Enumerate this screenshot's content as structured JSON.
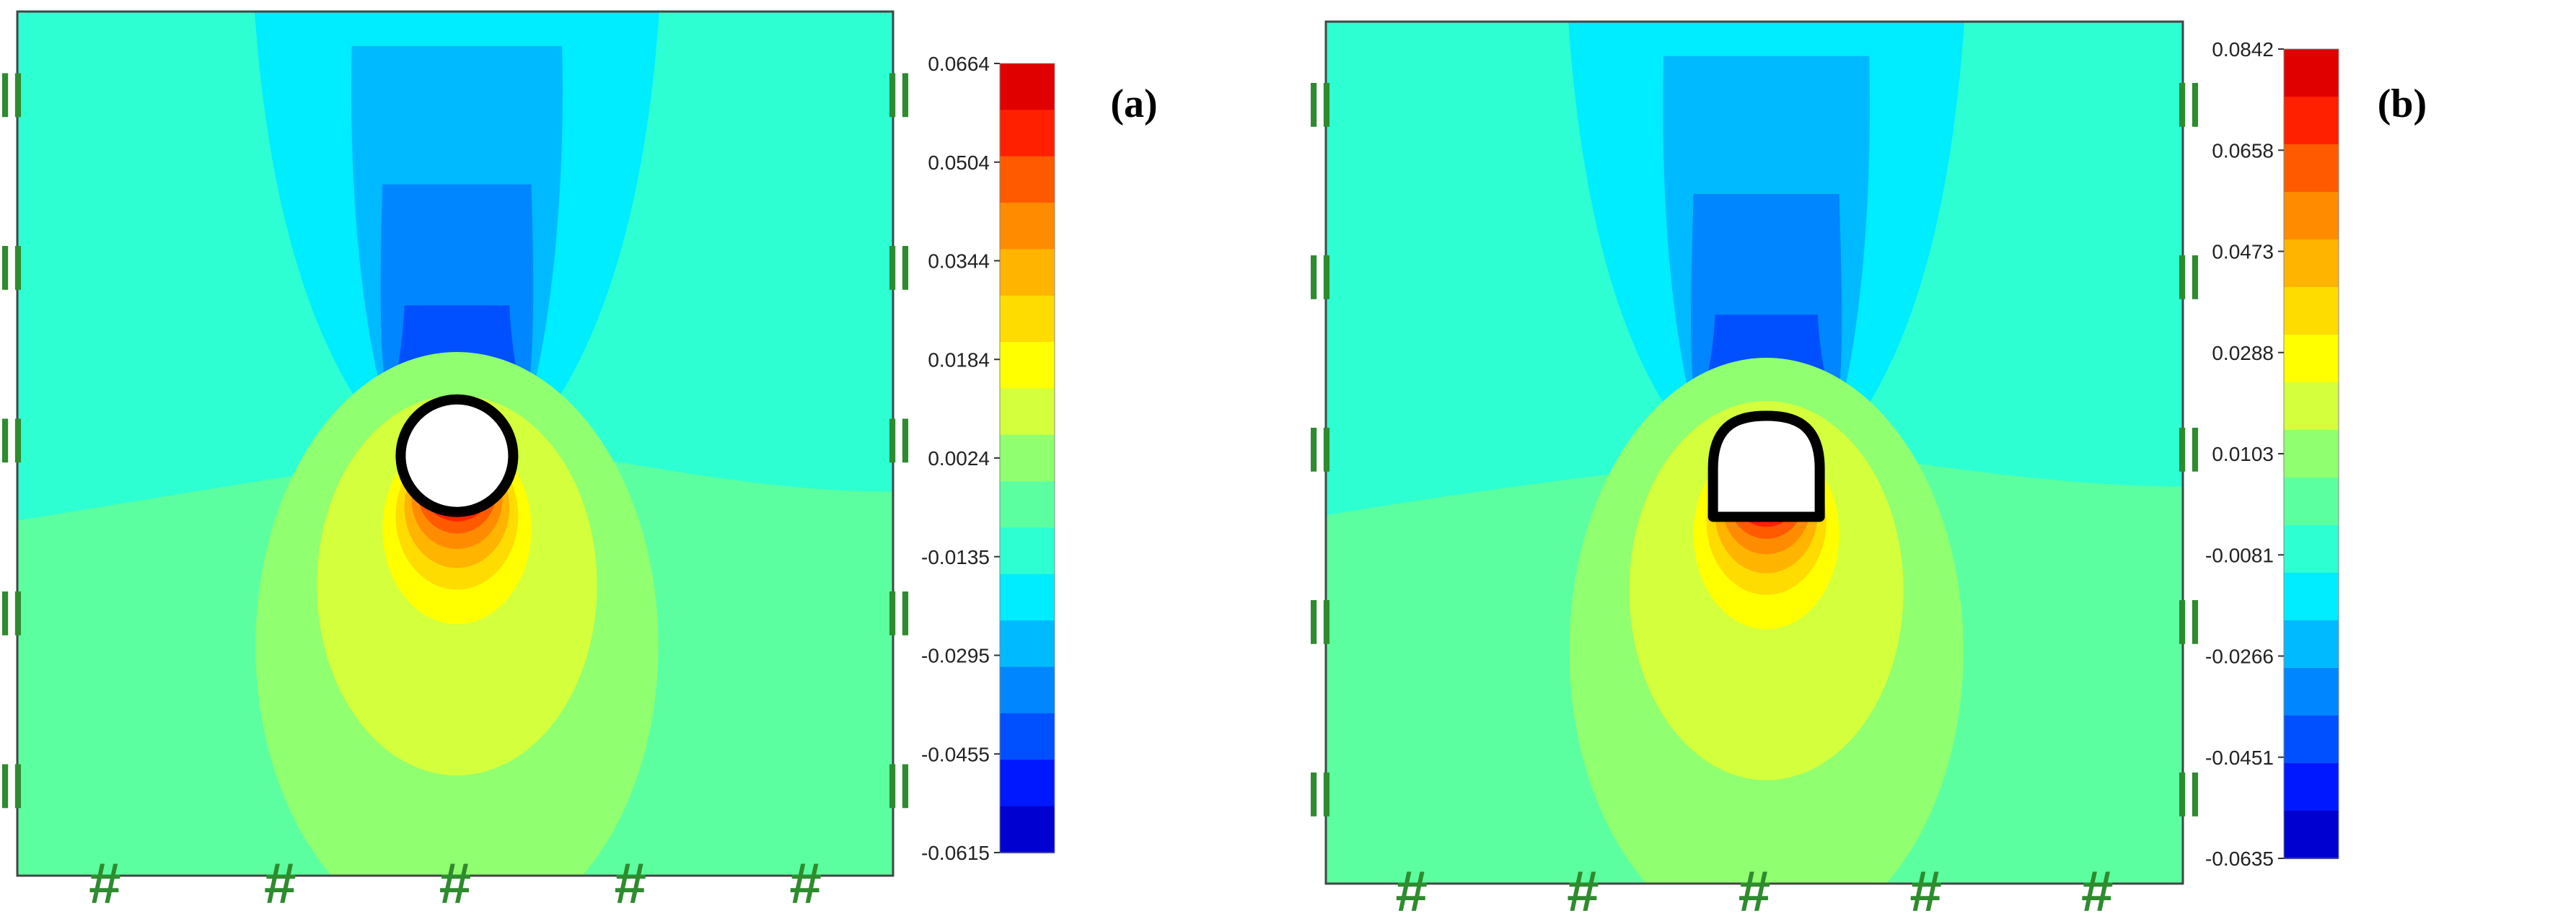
{
  "panels": [
    {
      "label": "(a)",
      "opening_shape": "circle",
      "colorbar_ticks": [
        "0.0664",
        "0.0504",
        "0.0344",
        "0.0184",
        "0.0024",
        "-0.0135",
        "-0.0295",
        "-0.0455",
        "-0.0615"
      ]
    },
    {
      "label": "(b)",
      "opening_shape": "horseshoe",
      "colorbar_ticks": [
        "0.0842",
        "0.0658",
        "0.0473",
        "0.0288",
        "0.0103",
        "-0.0081",
        "-0.0266",
        "-0.0451",
        "-0.0635"
      ]
    }
  ],
  "boundary_markers": {
    "side_roller_symbol": "||",
    "bottom_fixed_symbol": "#"
  },
  "colors": {
    "colormap": [
      "#e00000",
      "#ff2000",
      "#ff5a00",
      "#ff8c00",
      "#ffb400",
      "#ffdc00",
      "#ffff00",
      "#d4ff3c",
      "#90ff70",
      "#5cffa0",
      "#2dffd2",
      "#00ecff",
      "#00baff",
      "#0086ff",
      "#0050ff",
      "#0018ff",
      "#0000d0"
    ],
    "boundary_marker": "#2e8b2e",
    "model_border": "#444444",
    "tunnel_lining": "#000000"
  }
}
